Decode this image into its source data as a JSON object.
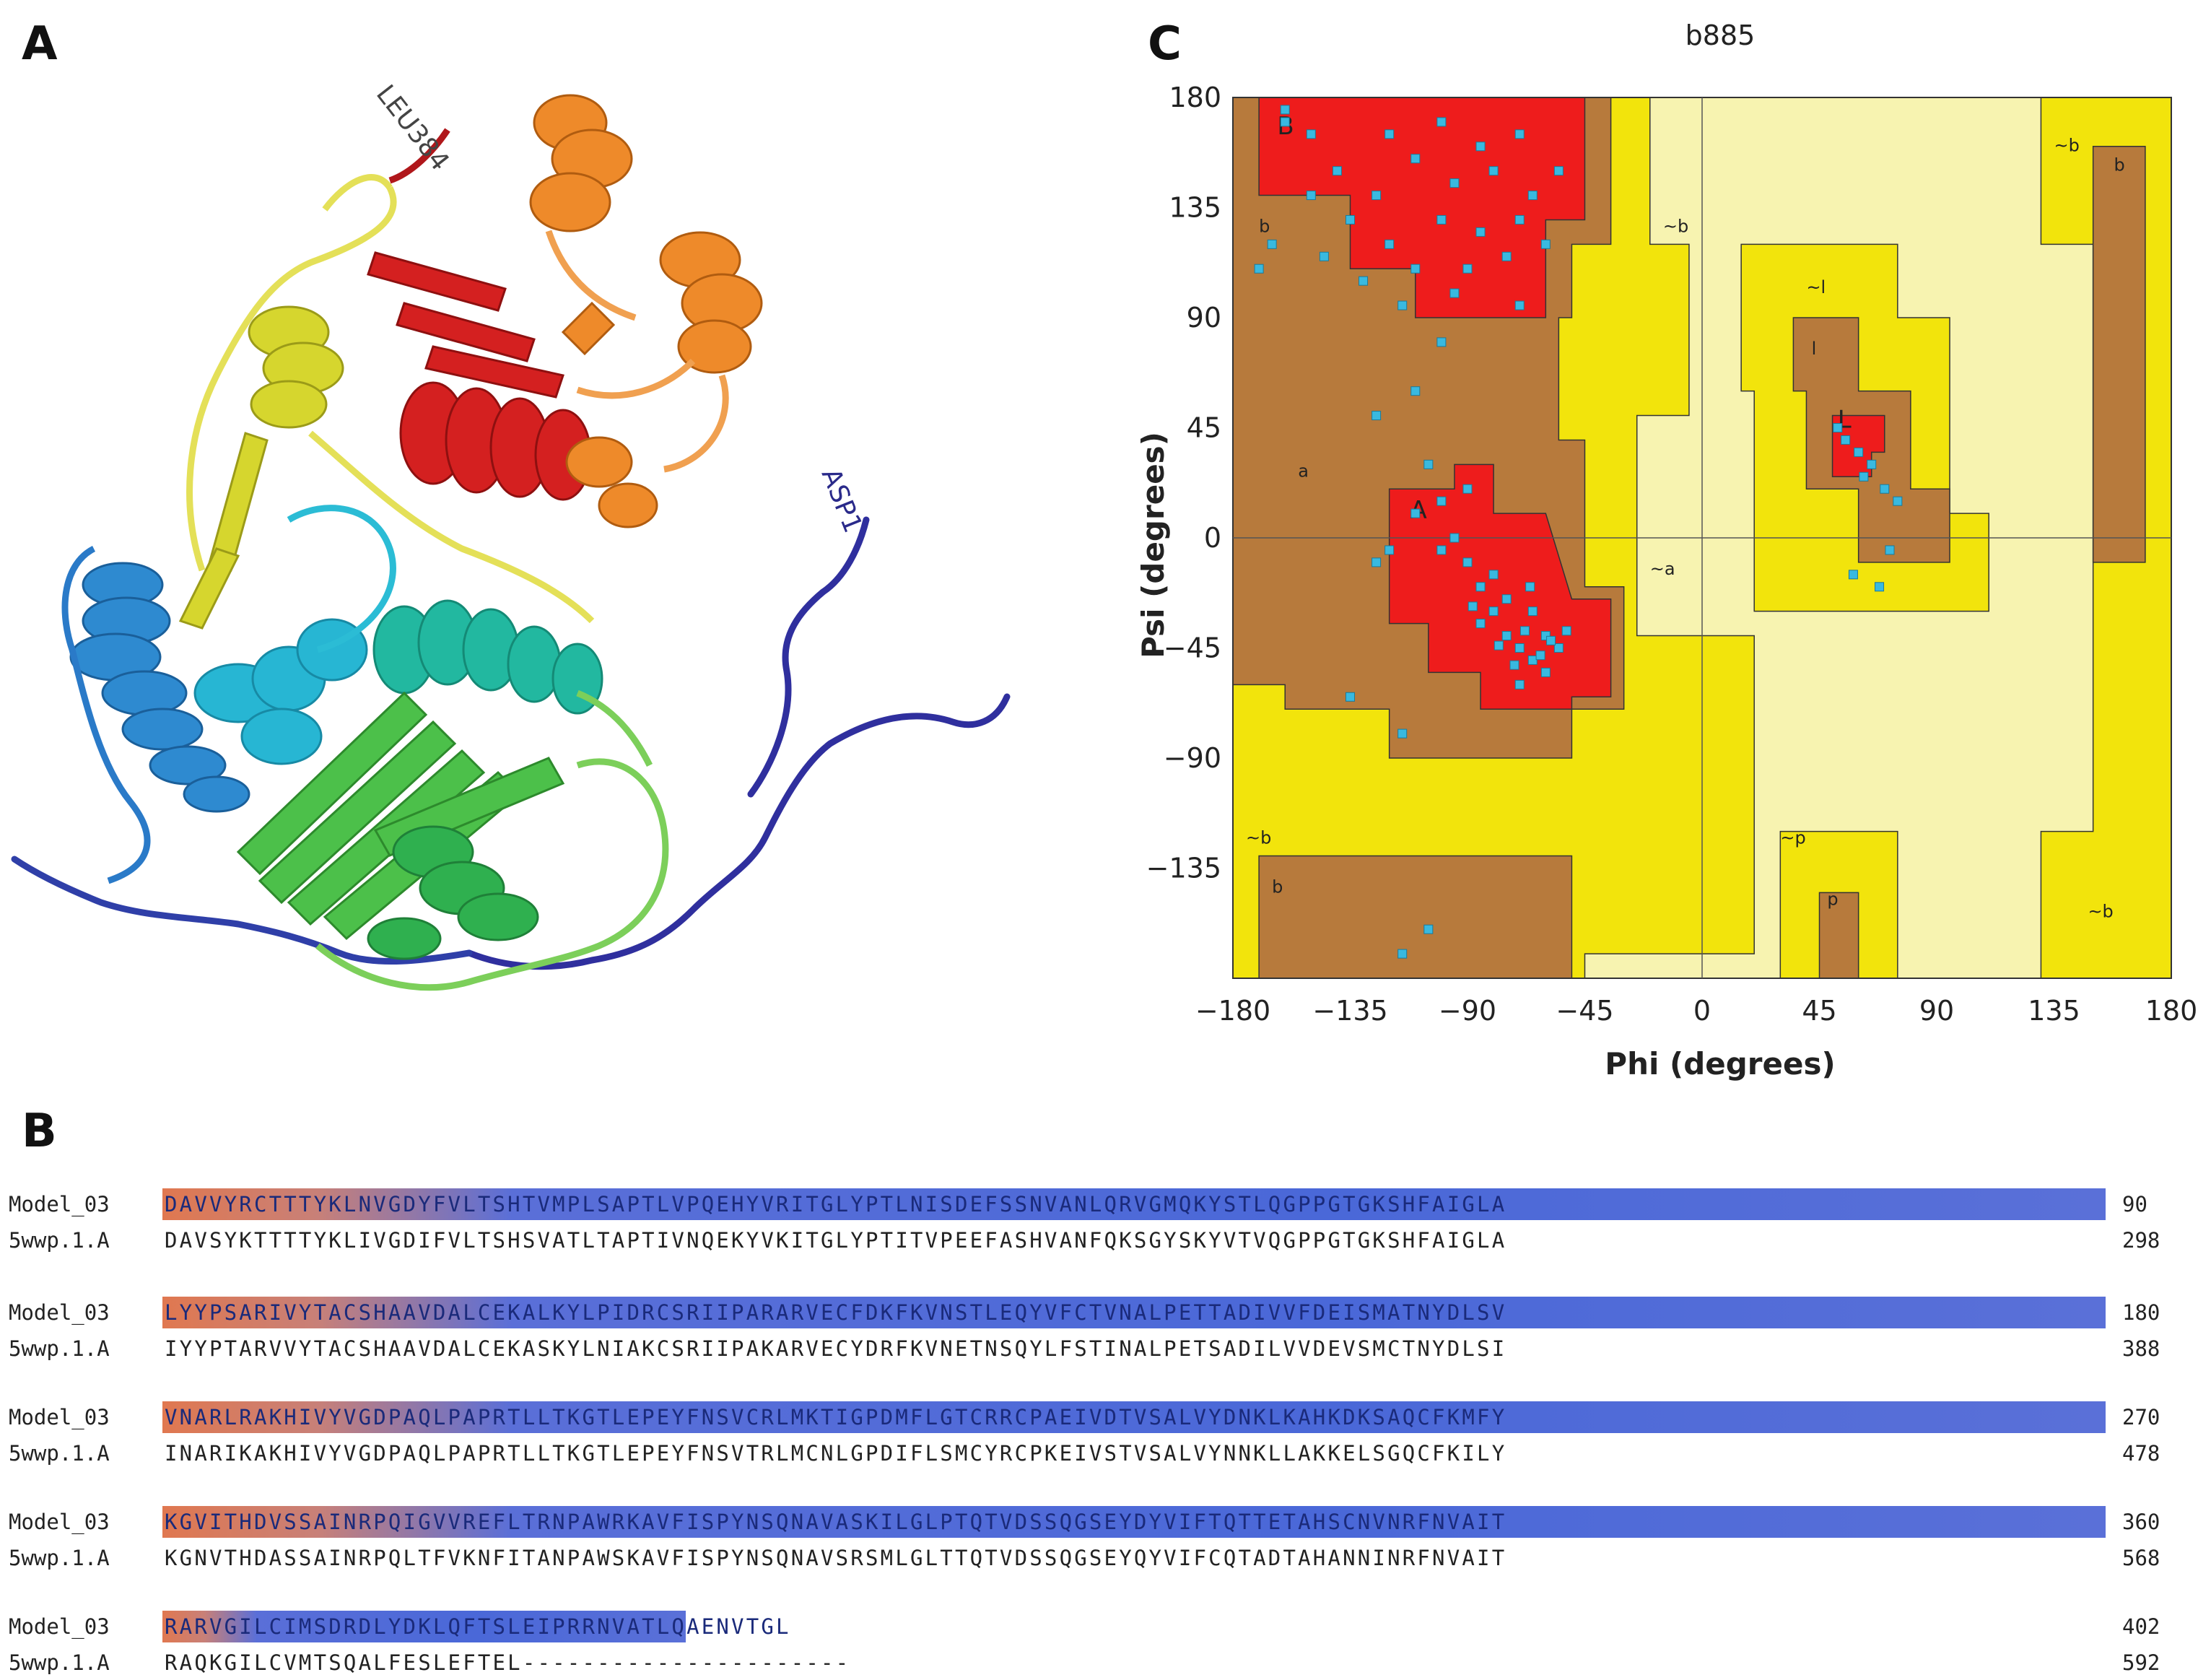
{
  "panels": {
    "a": {
      "letter": "A",
      "labels": {
        "c_term": "LEU384",
        "n_term": "ASP1"
      }
    },
    "b": {
      "letter": "B"
    },
    "c": {
      "letter": "C"
    }
  },
  "ramachandran": {
    "title": "b885",
    "xlabel": "Phi (degrees)",
    "ylabel": "Psi (degrees)",
    "xticks": [
      "−180",
      "−135",
      "−90",
      "−45",
      "0",
      "45",
      "90",
      "135",
      "180"
    ],
    "yticks": [
      "180",
      "135",
      "90",
      "45",
      "0",
      "−45",
      "−90",
      "−135"
    ],
    "region_labels": [
      "B",
      "b",
      "a",
      "A",
      "l",
      "L",
      "~b",
      "~l",
      "~a",
      "~b",
      "b",
      "~p",
      "p",
      "~b",
      "~b",
      "b"
    ],
    "colors": {
      "core": "#ee1c1c",
      "allowed": "#b77a3c",
      "generous": "#f2e40c",
      "disallowed": "#f7f3b0",
      "points": "#39b9e0"
    }
  },
  "chart_data": {
    "type": "scatter",
    "title": "b885",
    "xlabel": "Phi (degrees)",
    "ylabel": "Psi (degrees)",
    "xlim": [
      -180,
      180
    ],
    "ylim": [
      -180,
      180
    ],
    "grid": false,
    "series": [
      {
        "values": [
          [
            -150,
            165
          ],
          [
            -140,
            150
          ],
          [
            -125,
            140
          ],
          [
            -110,
            155
          ],
          [
            -95,
            145
          ],
          [
            -80,
            150
          ],
          [
            -65,
            140
          ],
          [
            -135,
            130
          ],
          [
            -120,
            120
          ],
          [
            -100,
            130
          ],
          [
            -85,
            125
          ],
          [
            -70,
            130
          ],
          [
            -55,
            150
          ],
          [
            -145,
            115
          ],
          [
            -130,
            105
          ],
          [
            -110,
            110
          ],
          [
            -90,
            110
          ],
          [
            -75,
            115
          ],
          [
            -60,
            120
          ],
          [
            -120,
            165
          ],
          [
            -100,
            170
          ],
          [
            -85,
            160
          ],
          [
            -70,
            165
          ],
          [
            -150,
            140
          ],
          [
            -115,
            95
          ],
          [
            -95,
            100
          ],
          [
            -70,
            95
          ],
          [
            -160,
            170
          ],
          [
            -105,
            30
          ],
          [
            -100,
            15
          ],
          [
            -95,
            0
          ],
          [
            -90,
            -10
          ],
          [
            -85,
            -20
          ],
          [
            -80,
            -30
          ],
          [
            -75,
            -40
          ],
          [
            -70,
            -45
          ],
          [
            -65,
            -50
          ],
          [
            -60,
            -40
          ],
          [
            -55,
            -45
          ],
          [
            -75,
            -25
          ],
          [
            -85,
            -35
          ],
          [
            -65,
            -30
          ],
          [
            -60,
            -55
          ],
          [
            -70,
            -60
          ],
          [
            -90,
            20
          ],
          [
            -110,
            10
          ],
          [
            -100,
            -5
          ],
          [
            -80,
            -15
          ],
          [
            -62,
            -48
          ],
          [
            -68,
            -38
          ],
          [
            -58,
            -42
          ],
          [
            -72,
            -52
          ],
          [
            -78,
            -44
          ],
          [
            -88,
            -28
          ],
          [
            -52,
            -38
          ],
          [
            -66,
            -20
          ],
          [
            -120,
            -5
          ],
          [
            -125,
            -10
          ],
          [
            -115,
            -80
          ],
          [
            -135,
            -65
          ],
          [
            -125,
            50
          ],
          [
            -110,
            60
          ],
          [
            -100,
            80
          ],
          [
            -165,
            120
          ],
          [
            -170,
            110
          ],
          [
            -160,
            175
          ],
          [
            -105,
            -160
          ],
          [
            -115,
            -170
          ],
          [
            55,
            40
          ],
          [
            60,
            35
          ],
          [
            52,
            45
          ],
          [
            65,
            30
          ],
          [
            70,
            20
          ],
          [
            75,
            15
          ],
          [
            62,
            25
          ],
          [
            58,
            -15
          ],
          [
            68,
            -20
          ],
          [
            72,
            -5
          ]
        ]
      }
    ]
  },
  "alignment": {
    "rows": [
      {
        "name": "Model_03",
        "seq": "DAVVYRCTTTYKLNVGDYFVLTSHTVMPLSAPTLVPQEHYVRITGLYPTLNISDEFSSNVANLQRVGMQKYSTLQGPPGTGKSHFAIGLA",
        "num": "90"
      },
      {
        "name": "5wwp.1.A",
        "seq": "DAVSYKTTTTYKLIVGDIFVLTSHSVATLTAPTIVNQEKYVKITGLYPTITVPEEFASHVANFQKSGYSKYVTVQGPPGTGKSHFAIGLA",
        "num": "298"
      },
      {
        "name": "Model_03",
        "seq": "LYYPSARIVYTACSHAAVDALCEKALKYLPIDRCSRIIPARARVECFDKFKVNSTLEQYVFCTVNALPETTADIVVFDEISMATNYDLSV",
        "num": "180"
      },
      {
        "name": "5wwp.1.A",
        "seq": "IYYPTARVVYTACSHAAVDALCEKASKYLNIAKCSRIIPAKARVECYDRFKVNETNSQYLFSTINALPETSADILVVDEVSMCTNYDLSI",
        "num": "388"
      },
      {
        "name": "Model_03",
        "seq": "VNARLRAKHIVYVGDPAQLPAPRTLLTKGTLEPEYFNSVCRLMKTIGPDMFLGTCRRCPAEIVDTVSALVYDNKLKAHKDKSAQCFKMFY",
        "num": "270"
      },
      {
        "name": "5wwp.1.A",
        "seq": "INARIKAKHIVYVGDPAQLPAPRTLLTKGTLEPEYFNSVTRLMCNLGPDIFLSMCYRCPKEIVSTVSALVYNNKLLAKKELSGQCFKILY",
        "num": "478"
      },
      {
        "name": "Model_03",
        "seq": "KGVITHDVSSAINRPQIGVVREFLTRNPAWRKAVFISPYNSQNAVASKILGLPTQTVDSSQGSEYDYVIFTQTTETAHSCNVNRFNVAIT",
        "num": "360"
      },
      {
        "name": "5wwp.1.A",
        "seq": "KGNVTHDASSAINRPQLTFVKNFITANPAWSKAVFISPYNSQNAVSRSMLGLTTQTVDSSQGSEYQYVIFCQTADTAHANNINRFNVAIT",
        "num": "568"
      },
      {
        "name": "Model_03",
        "seq": "RARVGILCIMSDRDLYDKLQFTSLEIPRRNVATLQAENVTGL",
        "num": "402"
      },
      {
        "name": "5wwp.1.A",
        "seq": "RAQKGILCVMTSQALFESLEFTEL----------------------",
        "num": "592"
      }
    ]
  }
}
